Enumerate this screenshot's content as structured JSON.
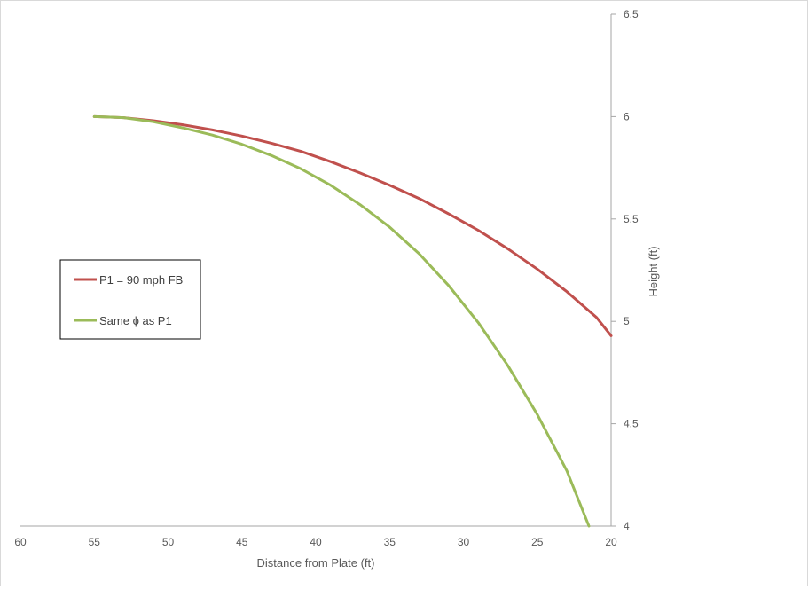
{
  "chart_data": {
    "type": "line",
    "title": "",
    "xlabel": "Distance from Plate (ft)",
    "ylabel": "Height (ft)",
    "xlim": [
      60,
      20
    ],
    "ylim": [
      4,
      6.5
    ],
    "x_reversed": true,
    "x_ticks": [
      60,
      55,
      50,
      45,
      40,
      35,
      30,
      25,
      20
    ],
    "y_ticks": [
      4,
      4.5,
      5,
      5.5,
      6,
      6.5
    ],
    "x_tick_labels": [
      "60",
      "55",
      "50",
      "45",
      "40",
      "35",
      "30",
      "25",
      "20"
    ],
    "y_tick_labels": [
      "4",
      "4.5",
      "5",
      "5.5",
      "6",
      "6.5"
    ],
    "y_axis_position": "right",
    "grid": false,
    "legend_position": "left",
    "series": [
      {
        "name": "P1 = 90 mph FB",
        "color": "#c0504d",
        "x": [
          55,
          53,
          51,
          49,
          47,
          45,
          43,
          41,
          39,
          37,
          35,
          33,
          31,
          29,
          27,
          25,
          23,
          21,
          20
        ],
        "y": [
          6.0,
          5.995,
          5.98,
          5.96,
          5.935,
          5.905,
          5.87,
          5.83,
          5.78,
          5.725,
          5.665,
          5.6,
          5.525,
          5.445,
          5.355,
          5.255,
          5.145,
          5.02,
          4.93
        ]
      },
      {
        "name": "Same ϕ as P1",
        "color": "#9bbb59",
        "x": [
          55,
          53,
          51,
          49,
          47,
          45,
          43,
          41,
          39,
          37,
          35,
          33,
          31,
          29,
          27,
          25,
          23,
          21.5
        ],
        "y": [
          6.0,
          5.995,
          5.975,
          5.945,
          5.91,
          5.865,
          5.81,
          5.745,
          5.665,
          5.57,
          5.46,
          5.33,
          5.175,
          4.995,
          4.785,
          4.545,
          4.27,
          4.0
        ]
      }
    ]
  }
}
